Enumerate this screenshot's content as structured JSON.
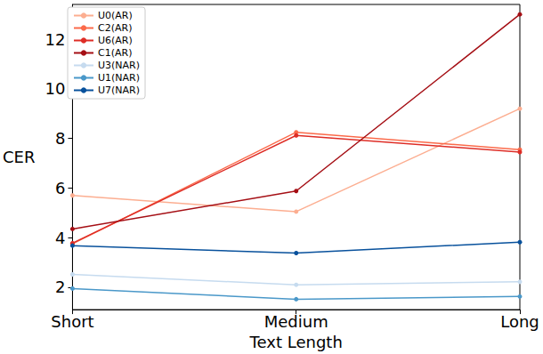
{
  "chart_data": {
    "type": "line",
    "x_label": "Text Length",
    "y_label": "CER",
    "categories": [
      "Short",
      "Medium",
      "Long"
    ],
    "series": [
      {
        "name": "U0(AR)",
        "color": "#fcae91",
        "values": [
          5.7,
          5.05,
          9.2
        ]
      },
      {
        "name": "C2(AR)",
        "color": "#fb6a4a",
        "values": [
          3.75,
          8.25,
          7.55
        ]
      },
      {
        "name": "U6(AR)",
        "color": "#de2d26",
        "values": [
          3.78,
          8.12,
          7.45
        ]
      },
      {
        "name": "C1(AR)",
        "color": "#a50f15",
        "values": [
          4.35,
          5.88,
          13.0
        ]
      },
      {
        "name": "U3(NAR)",
        "color": "#c6dbef",
        "values": [
          2.52,
          2.1,
          2.22
        ]
      },
      {
        "name": "U1(NAR)",
        "color": "#4a98c9",
        "values": [
          1.95,
          1.52,
          1.63
        ]
      },
      {
        "name": "U7(NAR)",
        "color": "#08519c",
        "values": [
          3.68,
          3.38,
          3.82
        ]
      }
    ],
    "ylim": [
      1.1,
      13.4
    ],
    "yticks": [
      2,
      4,
      6,
      8,
      10,
      12
    ],
    "grid": false,
    "legend": "upper left",
    "marker": "circle"
  }
}
